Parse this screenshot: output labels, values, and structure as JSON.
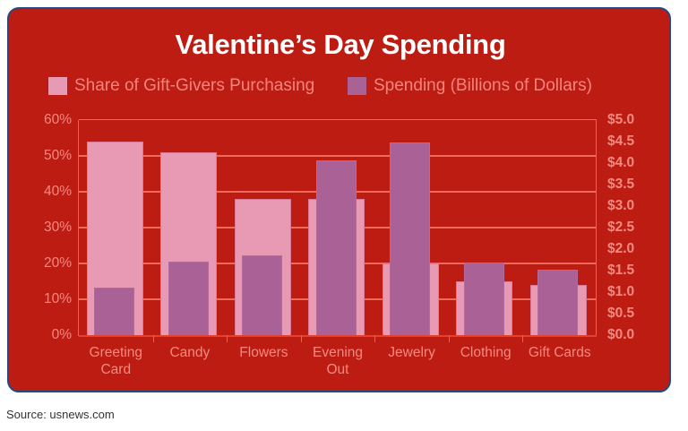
{
  "title": "Valentine’s Day Spending",
  "source": "Source: usnews.com",
  "colors": {
    "background": "#bc1c12",
    "border": "#1f4c88",
    "title": "#ffffff",
    "label": "#f48a80",
    "share": "#e89ab5",
    "spending": "#a96196",
    "gridline": "#f26a5a"
  },
  "legend": [
    {
      "label": "Share of Gift-Givers Purchasing",
      "color": "#e89ab5"
    },
    {
      "label": "Spending (Billions of Dollars)",
      "color": "#a96196"
    }
  ],
  "left_axis": {
    "ticks": [
      "60%",
      "50%",
      "40%",
      "30%",
      "20%",
      "10%",
      "0%"
    ]
  },
  "right_axis": {
    "ticks": [
      "$5.0",
      "$4.5",
      "$4.0",
      "$3.5",
      "$3.0",
      "$2.5",
      "$2.0",
      "$1.5",
      "$1.0",
      "$0.5",
      "$0.0"
    ]
  },
  "categories": [
    "Greeting\nCard",
    "Candy",
    "Flowers",
    "Evening\nOut",
    "Jewelry",
    "Clothing",
    "Gift Cards"
  ],
  "chart_data": {
    "type": "bar",
    "title": "Valentine’s Day Spending",
    "categories": [
      "Greeting Card",
      "Candy",
      "Flowers",
      "Evening Out",
      "Jewelry",
      "Clothing",
      "Gift Cards"
    ],
    "series": [
      {
        "name": "Share of Gift-Givers Purchasing",
        "axis": "left",
        "unit": "%",
        "values": [
          54,
          51,
          38,
          38,
          20,
          15,
          14
        ]
      },
      {
        "name": "Spending (Billions of Dollars)",
        "axis": "right",
        "unit": "$B",
        "values": [
          1.1,
          1.7,
          1.85,
          4.06,
          4.48,
          1.69,
          1.52
        ]
      }
    ],
    "xlabel": "",
    "ylabel_left": "",
    "ylabel_right": "",
    "ylim_left": [
      0,
      60
    ],
    "ylim_right": [
      0,
      5.0
    ],
    "grid": true,
    "legend_position": "top"
  }
}
